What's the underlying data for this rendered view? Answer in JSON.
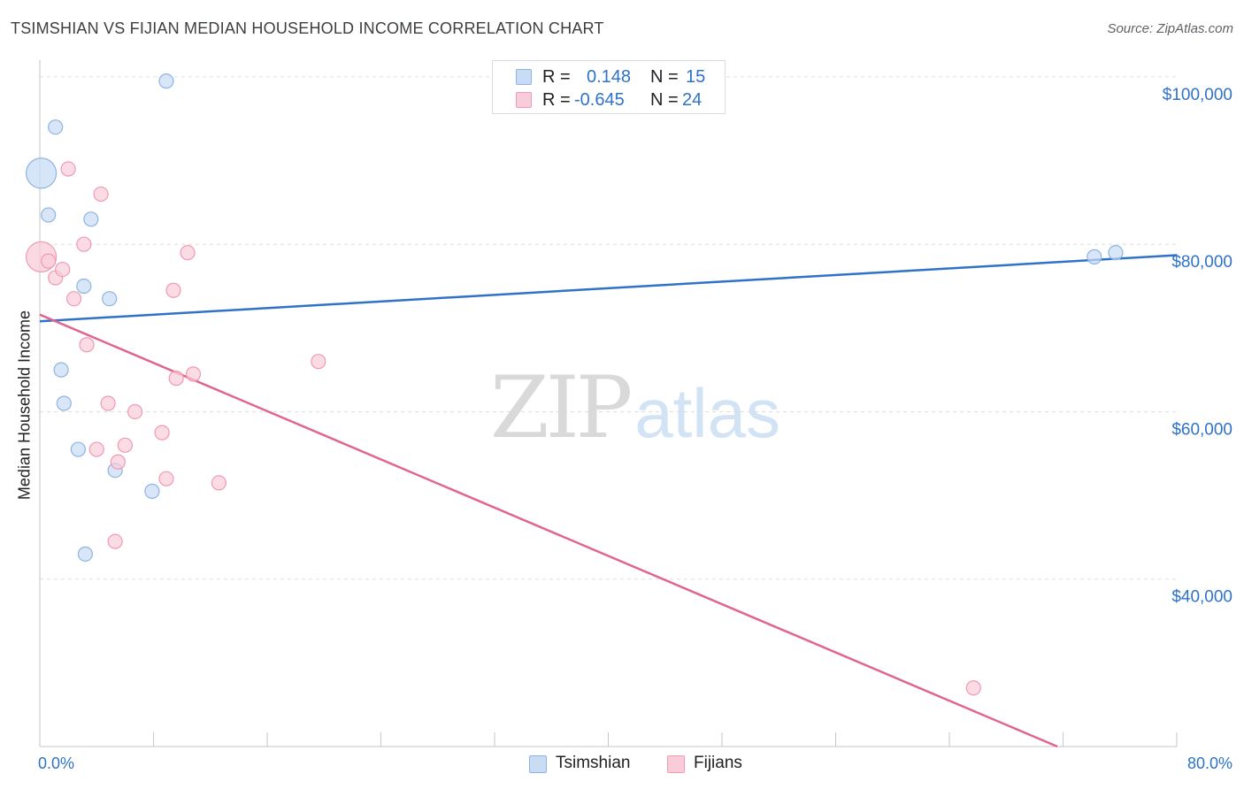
{
  "header": {
    "title": "TSIMSHIAN VS FIJIAN MEDIAN HOUSEHOLD INCOME CORRELATION CHART",
    "source": "Source: ZipAtlas.com"
  },
  "watermark": {
    "zip": "ZIP",
    "atlas": "atlas"
  },
  "stats": {
    "rows": [
      {
        "r_label": "R =",
        "r_value": "0.148",
        "n_label": "N =",
        "n_value": "15",
        "color": "#5b9bd5"
      },
      {
        "r_label": "R =",
        "r_value": "-0.645",
        "n_label": "N =",
        "n_value": "24",
        "color": "#e8799c"
      }
    ]
  },
  "legend": {
    "items": [
      "Tsimshian",
      "Fijians"
    ]
  },
  "colors": {
    "tsimshian_fill": "#c8dcf5",
    "tsimshian_stroke": "#8db4e2",
    "tsimshian_line": "#2f72c9",
    "fijian_fill": "#f9ccd9",
    "fijian_stroke": "#ef9ab4",
    "fijian_line": "#e06690",
    "axis_label": "#2f72c9",
    "grid": "#dadce0"
  },
  "chart_data": {
    "type": "scatter",
    "title": "TSIMSHIAN VS FIJIAN MEDIAN HOUSEHOLD INCOME CORRELATION CHART",
    "xlabel": "",
    "ylabel": "Median Household Income",
    "xlim": [
      0,
      80
    ],
    "ylim": [
      20000,
      102000
    ],
    "x_tick_labels": [
      "0.0%",
      "80.0%"
    ],
    "y_ticks": [
      40000,
      60000,
      80000,
      100000
    ],
    "y_tick_labels": [
      "$40,000",
      "$60,000",
      "$80,000",
      "$100,000"
    ],
    "grid": true,
    "legend_position": "bottom-center",
    "series": [
      {
        "name": "Tsimshian",
        "r": 0.148,
        "n": 15,
        "points": [
          {
            "x": 0.1,
            "y": 88500,
            "big": true
          },
          {
            "x": 0.6,
            "y": 83500
          },
          {
            "x": 1.1,
            "y": 94000
          },
          {
            "x": 1.5,
            "y": 65000
          },
          {
            "x": 1.7,
            "y": 61000
          },
          {
            "x": 2.7,
            "y": 55500
          },
          {
            "x": 3.1,
            "y": 75000
          },
          {
            "x": 3.2,
            "y": 43000
          },
          {
            "x": 3.6,
            "y": 83000
          },
          {
            "x": 4.9,
            "y": 73500
          },
          {
            "x": 5.3,
            "y": 53000
          },
          {
            "x": 7.9,
            "y": 50500
          },
          {
            "x": 8.9,
            "y": 99500
          },
          {
            "x": 74.2,
            "y": 78500
          },
          {
            "x": 75.7,
            "y": 79000
          }
        ],
        "trend": {
          "x": [
            0,
            80
          ],
          "y": [
            70800,
            78700
          ]
        }
      },
      {
        "name": "Fijians",
        "r": -0.645,
        "n": 24,
        "points": [
          {
            "x": 0.1,
            "y": 78500,
            "big": true
          },
          {
            "x": 0.6,
            "y": 78000
          },
          {
            "x": 1.1,
            "y": 76000
          },
          {
            "x": 1.6,
            "y": 77000
          },
          {
            "x": 2.4,
            "y": 73500
          },
          {
            "x": 2.0,
            "y": 89000
          },
          {
            "x": 3.1,
            "y": 80000
          },
          {
            "x": 3.3,
            "y": 68000
          },
          {
            "x": 4.0,
            "y": 55500
          },
          {
            "x": 4.3,
            "y": 86000
          },
          {
            "x": 4.8,
            "y": 61000
          },
          {
            "x": 5.3,
            "y": 44500
          },
          {
            "x": 5.5,
            "y": 54000
          },
          {
            "x": 6.0,
            "y": 56000
          },
          {
            "x": 6.7,
            "y": 60000
          },
          {
            "x": 8.6,
            "y": 57500
          },
          {
            "x": 8.9,
            "y": 52000
          },
          {
            "x": 9.4,
            "y": 74500
          },
          {
            "x": 9.6,
            "y": 64000
          },
          {
            "x": 10.4,
            "y": 79000
          },
          {
            "x": 10.8,
            "y": 64500
          },
          {
            "x": 12.6,
            "y": 51500
          },
          {
            "x": 19.6,
            "y": 66000
          },
          {
            "x": 65.7,
            "y": 27000
          }
        ],
        "trend": {
          "x": [
            0,
            71.6
          ],
          "y": [
            71600,
            20000
          ]
        }
      }
    ]
  }
}
